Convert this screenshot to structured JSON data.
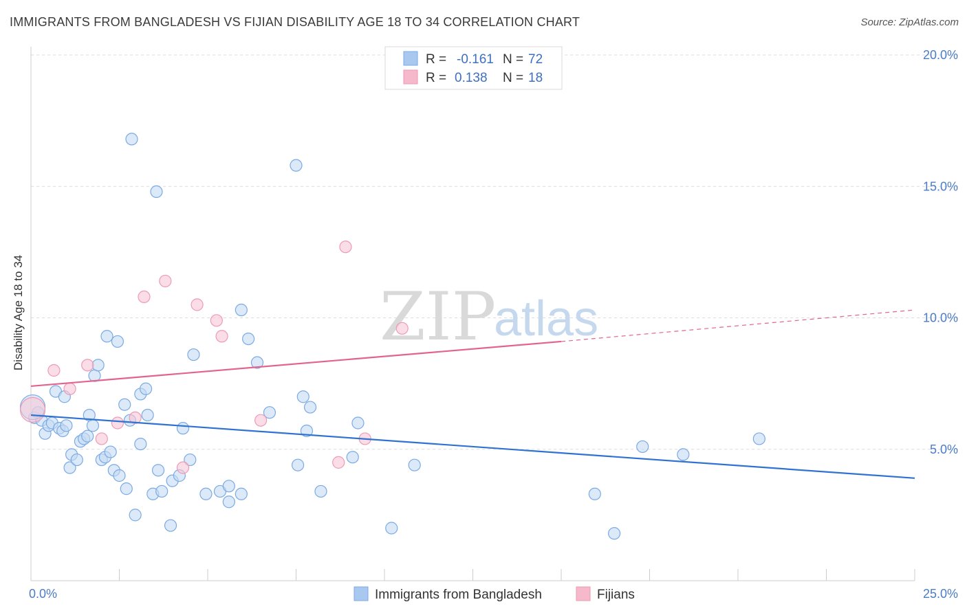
{
  "title": "IMMIGRANTS FROM BANGLADESH VS FIJIAN DISABILITY AGE 18 TO 34 CORRELATION CHART",
  "source": "Source: ZipAtlas.com",
  "watermark": {
    "zip": "ZIP",
    "atlas": "atlas"
  },
  "legend_box": {
    "rows": [
      {
        "r_label": "R =",
        "r_value": "-0.161",
        "n_label": "N =",
        "n_value": "72",
        "color": "#a9c8f0"
      },
      {
        "r_label": "R =",
        "r_value": "0.138",
        "n_label": "N =",
        "n_value": "18",
        "color": "#f6b8cb"
      }
    ]
  },
  "bottom_legend": [
    {
      "label": "Immigrants from Bangladesh",
      "color": "#a9c8f0"
    },
    {
      "label": "Fijians",
      "color": "#f6b8cb"
    }
  ],
  "chart_data": {
    "type": "scatter",
    "ylabel": "Disability Age 18 to 34",
    "xlim": [
      0,
      25
    ],
    "ylim": [
      0,
      20
    ],
    "x_tick_labels": [
      {
        "v": 0,
        "t": "0.0%"
      },
      {
        "v": 25,
        "t": "25.0%"
      }
    ],
    "y_tick_labels": [
      {
        "v": 5,
        "t": "5.0%"
      },
      {
        "v": 10,
        "t": "10.0%"
      },
      {
        "v": 15,
        "t": "15.0%"
      },
      {
        "v": 20,
        "t": "20.0%"
      }
    ],
    "grid": true,
    "series": [
      {
        "name": "Immigrants from Bangladesh",
        "color": "#7aaae4",
        "fill": "#c5daf4",
        "trend": {
          "x": [
            0,
            25
          ],
          "y": [
            6.3,
            3.9
          ],
          "color": "#2f72d0"
        },
        "points": [
          [
            0.1,
            6.2
          ],
          [
            0.2,
            6.4
          ],
          [
            0.3,
            6.1
          ],
          [
            0.4,
            5.6
          ],
          [
            0.5,
            5.9
          ],
          [
            0.6,
            6.0
          ],
          [
            0.7,
            7.2
          ],
          [
            0.8,
            5.8
          ],
          [
            0.9,
            5.7
          ],
          [
            0.95,
            7.0
          ],
          [
            1.0,
            5.9
          ],
          [
            1.1,
            4.3
          ],
          [
            1.15,
            4.8
          ],
          [
            1.3,
            4.6
          ],
          [
            1.4,
            5.3
          ],
          [
            1.5,
            5.4
          ],
          [
            1.6,
            5.5
          ],
          [
            1.65,
            6.3
          ],
          [
            1.75,
            5.9
          ],
          [
            1.8,
            7.8
          ],
          [
            1.9,
            8.2
          ],
          [
            2.0,
            4.6
          ],
          [
            2.1,
            4.7
          ],
          [
            2.15,
            9.3
          ],
          [
            2.25,
            4.9
          ],
          [
            2.35,
            4.2
          ],
          [
            2.45,
            9.1
          ],
          [
            2.5,
            4.0
          ],
          [
            2.65,
            6.7
          ],
          [
            2.7,
            3.5
          ],
          [
            2.8,
            6.1
          ],
          [
            2.85,
            16.8
          ],
          [
            2.95,
            2.5
          ],
          [
            3.1,
            5.2
          ],
          [
            3.1,
            7.1
          ],
          [
            3.25,
            7.3
          ],
          [
            3.3,
            6.3
          ],
          [
            3.45,
            3.3
          ],
          [
            3.55,
            14.8
          ],
          [
            3.6,
            4.2
          ],
          [
            3.7,
            3.4
          ],
          [
            3.95,
            2.1
          ],
          [
            4.0,
            3.8
          ],
          [
            4.2,
            4.0
          ],
          [
            4.3,
            5.8
          ],
          [
            4.5,
            4.6
          ],
          [
            4.6,
            8.6
          ],
          [
            4.95,
            3.3
          ],
          [
            5.35,
            3.4
          ],
          [
            5.6,
            3.6
          ],
          [
            5.6,
            3.0
          ],
          [
            5.95,
            3.3
          ],
          [
            5.95,
            10.3
          ],
          [
            6.15,
            9.2
          ],
          [
            6.4,
            8.3
          ],
          [
            6.75,
            6.4
          ],
          [
            7.5,
            15.8
          ],
          [
            7.55,
            4.4
          ],
          [
            7.7,
            7.0
          ],
          [
            7.8,
            5.7
          ],
          [
            7.9,
            6.6
          ],
          [
            8.2,
            3.4
          ],
          [
            9.1,
            4.7
          ],
          [
            9.25,
            6.0
          ],
          [
            10.2,
            2.0
          ],
          [
            10.85,
            4.4
          ],
          [
            15.95,
            3.3
          ],
          [
            16.5,
            1.8
          ],
          [
            17.3,
            5.1
          ],
          [
            18.45,
            4.8
          ],
          [
            20.6,
            5.4
          ],
          [
            0.05,
            6.6
          ]
        ]
      },
      {
        "name": "Fijians",
        "color": "#ee9ab5",
        "fill": "#f7c6d5",
        "trend": {
          "x": [
            0,
            15
          ],
          "y": [
            7.4,
            9.1
          ],
          "dash_x": [
            15,
            25
          ],
          "dash_y": [
            9.1,
            10.3
          ],
          "color": "#e2648e"
        },
        "points": [
          [
            0.05,
            6.5
          ],
          [
            0.65,
            8.0
          ],
          [
            1.1,
            7.3
          ],
          [
            1.6,
            8.2
          ],
          [
            2.0,
            5.4
          ],
          [
            2.45,
            6.0
          ],
          [
            2.95,
            6.2
          ],
          [
            3.2,
            10.8
          ],
          [
            3.8,
            11.4
          ],
          [
            4.3,
            4.3
          ],
          [
            4.7,
            10.5
          ],
          [
            5.25,
            9.9
          ],
          [
            5.4,
            9.3
          ],
          [
            6.5,
            6.1
          ],
          [
            8.7,
            4.5
          ],
          [
            8.9,
            12.7
          ],
          [
            9.45,
            5.4
          ],
          [
            10.5,
            9.6
          ]
        ]
      }
    ]
  }
}
